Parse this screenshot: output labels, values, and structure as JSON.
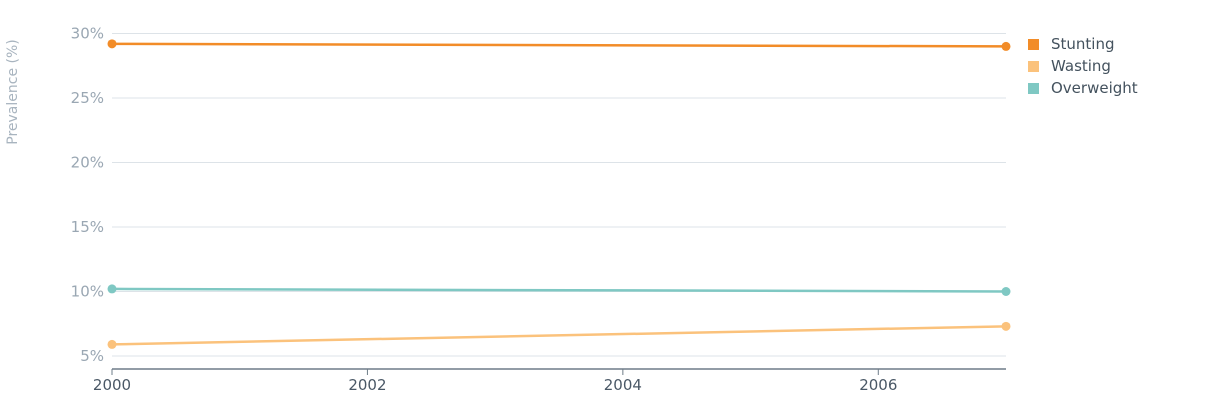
{
  "chart_data": {
    "type": "line",
    "ylabel": "Prevalence (%)",
    "x": [
      2000,
      2007
    ],
    "xticks": [
      "2000",
      "2002",
      "2004",
      "2006"
    ],
    "xlim": [
      2000,
      2007
    ],
    "yticks": [
      "5%",
      "10%",
      "15%",
      "20%",
      "25%",
      "30%"
    ],
    "ylim": [
      4,
      30
    ],
    "grid": true,
    "legend_position": "right",
    "series": [
      {
        "name": "Stunting",
        "color": "#f28c28",
        "values": [
          29.2,
          29.0
        ]
      },
      {
        "name": "Wasting",
        "color": "#fbc27c",
        "values": [
          5.9,
          7.3
        ]
      },
      {
        "name": "Overweight",
        "color": "#7fc8c3",
        "values": [
          10.2,
          10.0
        ]
      }
    ]
  }
}
